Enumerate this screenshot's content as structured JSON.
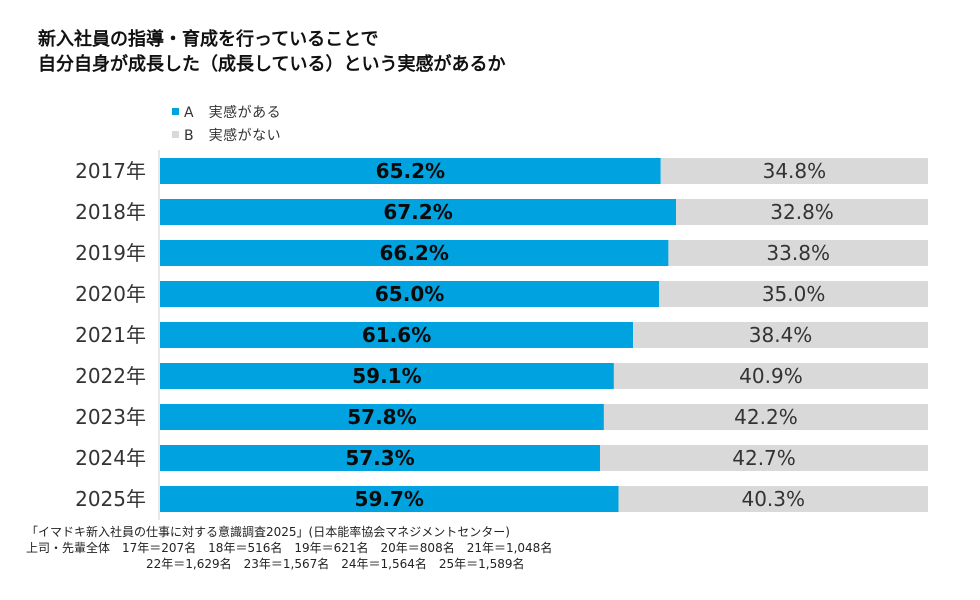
{
  "title": {
    "line1": "新入社員の指導・育成を行っていることで",
    "line2": "自分自身が成長した（成長している）という実感があるか"
  },
  "legend": [
    {
      "label": "A　実感がある",
      "color": "#00a3e0"
    },
    {
      "label": "B　実感がない",
      "color": "#d9d9d9"
    }
  ],
  "footnote": {
    "line1": "「イマドキ新入社員の仕事に対する意識調査2025」(日本能率協会マネジメントセンター)",
    "line2": "上司・先輩全体　17年＝207名　18年＝516名　19年＝621名　20年＝808名　21年＝1,048名",
    "line3": "22年＝1,629名　23年＝1,567名　24年＝1,564名　25年＝1,589名"
  },
  "chart_data": {
    "type": "bar",
    "orientation": "horizontal-stacked-100",
    "title": "新入社員の指導・育成を行っていることで自分自身が成長した（成長している）という実感があるか",
    "categories": [
      "2017年",
      "2018年",
      "2019年",
      "2020年",
      "2021年",
      "2022年",
      "2023年",
      "2024年",
      "2025年"
    ],
    "series": [
      {
        "name": "A　実感がある",
        "color": "#00a3e0",
        "values": [
          65.2,
          67.2,
          66.2,
          65.0,
          61.6,
          59.1,
          57.8,
          57.3,
          59.7
        ],
        "labels": [
          "65.2%",
          "67.2%",
          "66.2%",
          "65.0%",
          "61.6%",
          "59.1%",
          "57.8%",
          "57.3%",
          "59.7%"
        ]
      },
      {
        "name": "B　実感がない",
        "color": "#d9d9d9",
        "values": [
          34.8,
          32.8,
          33.8,
          35.0,
          38.4,
          40.9,
          42.2,
          42.7,
          40.3
        ],
        "labels": [
          "34.8%",
          "32.8%",
          "33.8%",
          "35.0%",
          "38.4%",
          "40.9%",
          "42.2%",
          "42.7%",
          "40.3%"
        ]
      }
    ],
    "xlim": [
      0,
      100
    ],
    "unit": "%",
    "legend_position": "top-left",
    "grid": false
  }
}
